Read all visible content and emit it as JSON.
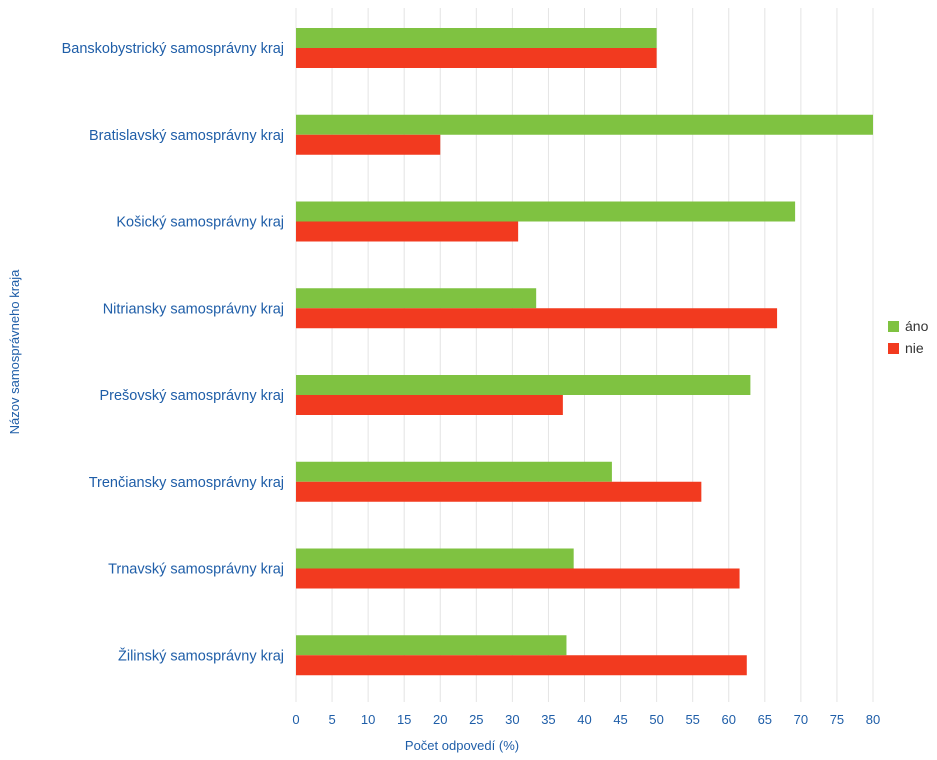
{
  "chart_data": {
    "type": "bar",
    "orientation": "horizontal",
    "categories": [
      "Banskobystrický samosprávny kraj",
      "Bratislavský samosprávny kraj",
      "Košický samosprávny kraj",
      "Nitriansky samosprávny kraj",
      "Prešovský samosprávny kraj",
      "Trenčiansky samosprávny kraj",
      "Trnavský samosprávny kraj",
      "Žilinský samosprávny kraj"
    ],
    "series": [
      {
        "name": "áno",
        "color": "#7fc241",
        "values": [
          50,
          80,
          69.2,
          33.3,
          63,
          43.8,
          38.5,
          37.5
        ]
      },
      {
        "name": "nie",
        "color": "#f23a1f",
        "values": [
          50,
          20,
          30.8,
          66.7,
          37,
          56.2,
          61.5,
          62.5
        ]
      }
    ],
    "xlabel": "Počet odpovedí (%)",
    "ylabel": "Názov samosprávneho kraja",
    "xlim": [
      0,
      80
    ],
    "xticks": [
      "0",
      "5",
      "10",
      "15",
      "20",
      "25",
      "30",
      "35",
      "40",
      "45",
      "50",
      "55",
      "60",
      "65",
      "70",
      "75",
      "80"
    ],
    "grid": true,
    "legend": "right",
    "text_color": "#1f5ea8",
    "grid_color": "#e4e4e4"
  }
}
